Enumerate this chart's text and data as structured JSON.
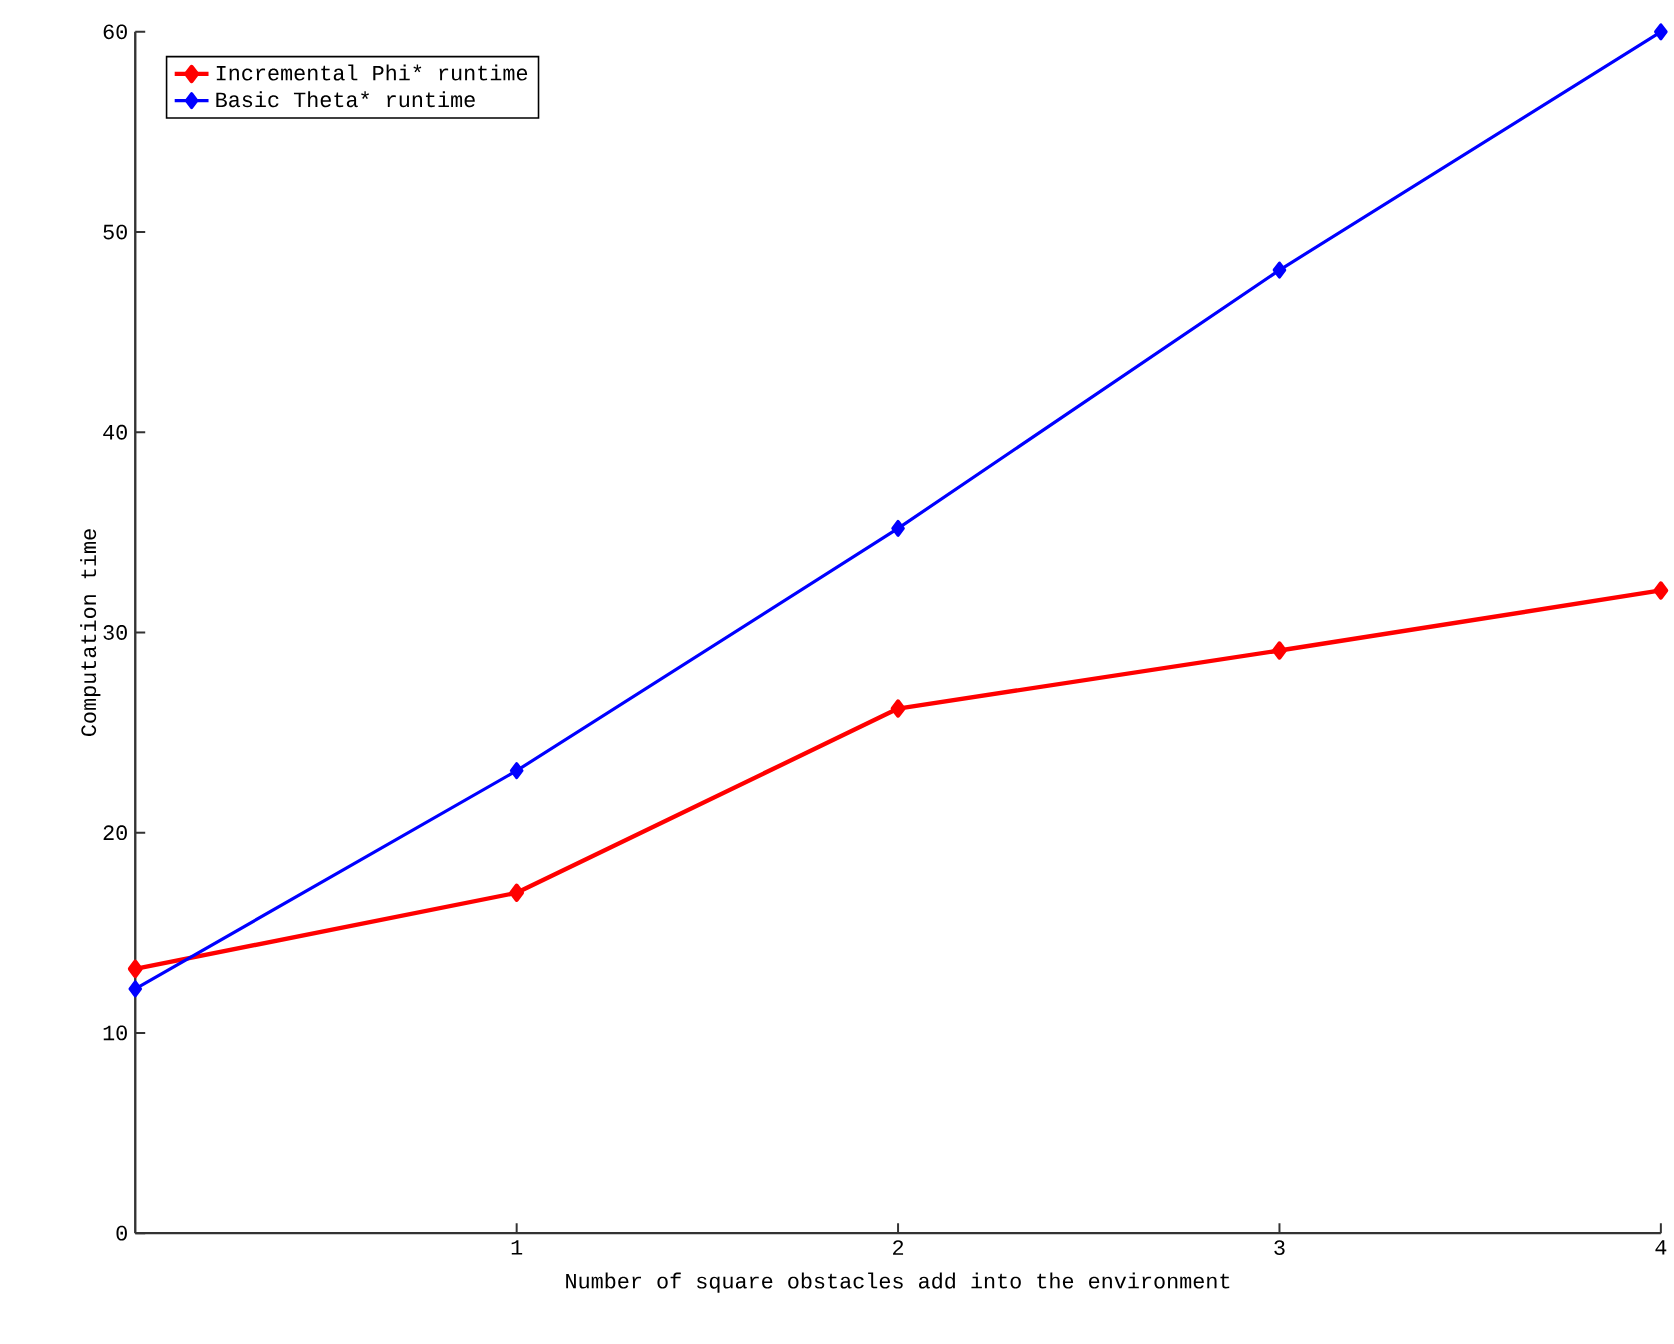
{
  "chart_data": {
    "type": "line",
    "xlabel": "Number of square obstacles add into the environment",
    "ylabel": "Computation time",
    "x": [
      0,
      1,
      2,
      3,
      4
    ],
    "series": [
      {
        "name": "Incremental Phi* runtime",
        "color": "#ff0000",
        "values": [
          13.2,
          17.0,
          26.2,
          29.1,
          32.1
        ]
      },
      {
        "name": "Basic Theta* runtime",
        "color": "#0000ff",
        "values": [
          12.2,
          23.1,
          35.2,
          48.1,
          60.0
        ]
      }
    ],
    "xlim": [
      0,
      4
    ],
    "ylim": [
      0,
      60
    ],
    "xticks": [
      1,
      2,
      3,
      4
    ],
    "yticks": [
      0,
      10,
      20,
      30,
      40,
      50,
      60
    ],
    "grid": false,
    "legend": "top left",
    "marker": "diamond",
    "line_style": "solid"
  }
}
